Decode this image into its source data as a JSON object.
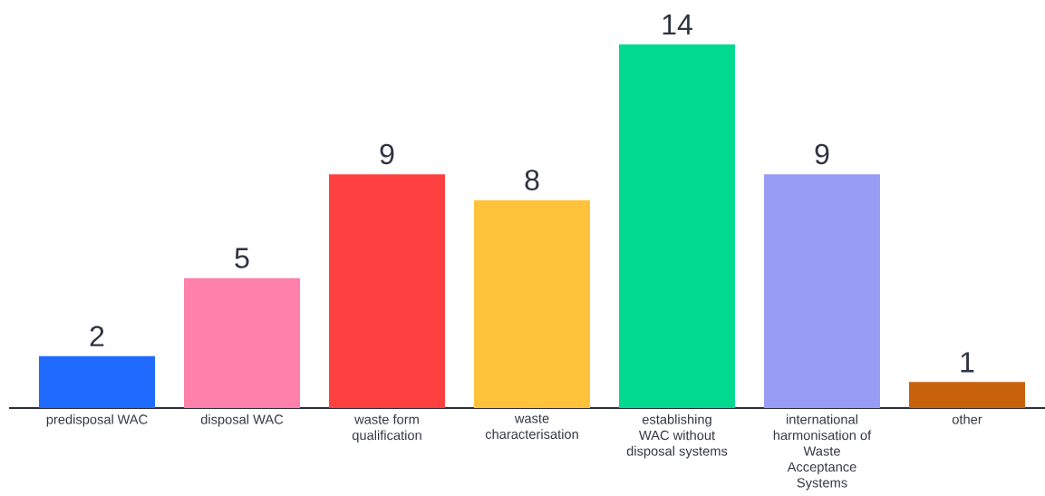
{
  "chart_data": {
    "type": "bar",
    "categories": [
      "predisposal WAC",
      "disposal WAC",
      "waste form qualification",
      "waste characterisation",
      "establishing WAC without disposal systems",
      "international harmonisation of Waste Acceptance Systems",
      "other"
    ],
    "values": [
      2,
      5,
      9,
      8,
      14,
      9,
      1
    ],
    "colors": [
      "#1f6bff",
      "#ff80ab",
      "#ff4040",
      "#ffc23a",
      "#00d98f",
      "#999cf5",
      "#c9620c"
    ],
    "data_labels": true
  }
}
